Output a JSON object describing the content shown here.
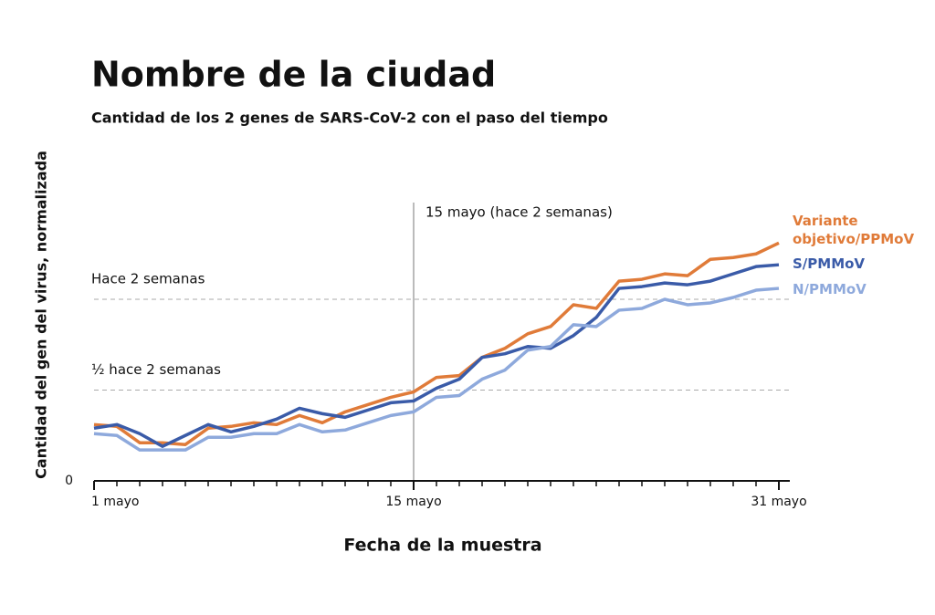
{
  "chart_data": {
    "type": "line",
    "title": "Nombre de la ciudad",
    "subtitle": "Cantidad de los 2 genes de SARS-CoV-2 con el paso del tiempo",
    "xlabel": "Fecha de la muestra",
    "ylabel": "Cantidad del gen del virus, normalizada",
    "x": [
      1,
      2,
      3,
      4,
      5,
      6,
      7,
      8,
      9,
      10,
      11,
      12,
      13,
      14,
      15,
      16,
      17,
      18,
      19,
      20,
      21,
      22,
      23,
      24,
      25,
      26,
      27,
      28,
      29,
      30,
      31
    ],
    "series": [
      {
        "name": "Variante objetivo/PPMoV",
        "color": "#e07b39",
        "values": [
          31,
          30,
          21,
          21,
          20,
          29,
          30,
          32,
          31,
          36,
          32,
          38,
          42,
          46,
          49,
          57,
          58,
          68,
          73,
          81,
          85,
          97,
          95,
          110,
          111,
          114,
          113,
          122,
          123,
          125,
          131
        ]
      },
      {
        "name": "S/PMMoV",
        "color": "#3a5ba8",
        "values": [
          29,
          31,
          26,
          19,
          25,
          31,
          27,
          30,
          34,
          40,
          37,
          35,
          39,
          43,
          44,
          51,
          56,
          68,
          70,
          74,
          73,
          80,
          90,
          106,
          107,
          109,
          108,
          110,
          114,
          118,
          119
        ]
      },
      {
        "name": "N/PMMoV",
        "color": "#8ea9dc",
        "values": [
          26,
          25,
          17,
          17,
          17,
          24,
          24,
          26,
          26,
          31,
          27,
          28,
          32,
          36,
          38,
          46,
          47,
          56,
          61,
          72,
          74,
          86,
          85,
          94,
          95,
          100,
          97,
          98,
          101,
          105,
          106
        ]
      }
    ],
    "xlim": [
      1,
      31
    ],
    "ylim": [
      0,
      150
    ],
    "xticks": [
      {
        "value": 1,
        "label": "1 mayo"
      },
      {
        "value": 15,
        "label": "15 mayo"
      },
      {
        "value": 31,
        "label": "31 mayo"
      }
    ],
    "yticks": [
      0
    ],
    "reference_lines": [
      {
        "value": 100,
        "label": "Hace 2 semanas"
      },
      {
        "value": 50,
        "label": "½ hace 2 semanas"
      }
    ],
    "annotation": {
      "x": 15,
      "label": "15 mayo (hace 2 semanas)"
    }
  }
}
